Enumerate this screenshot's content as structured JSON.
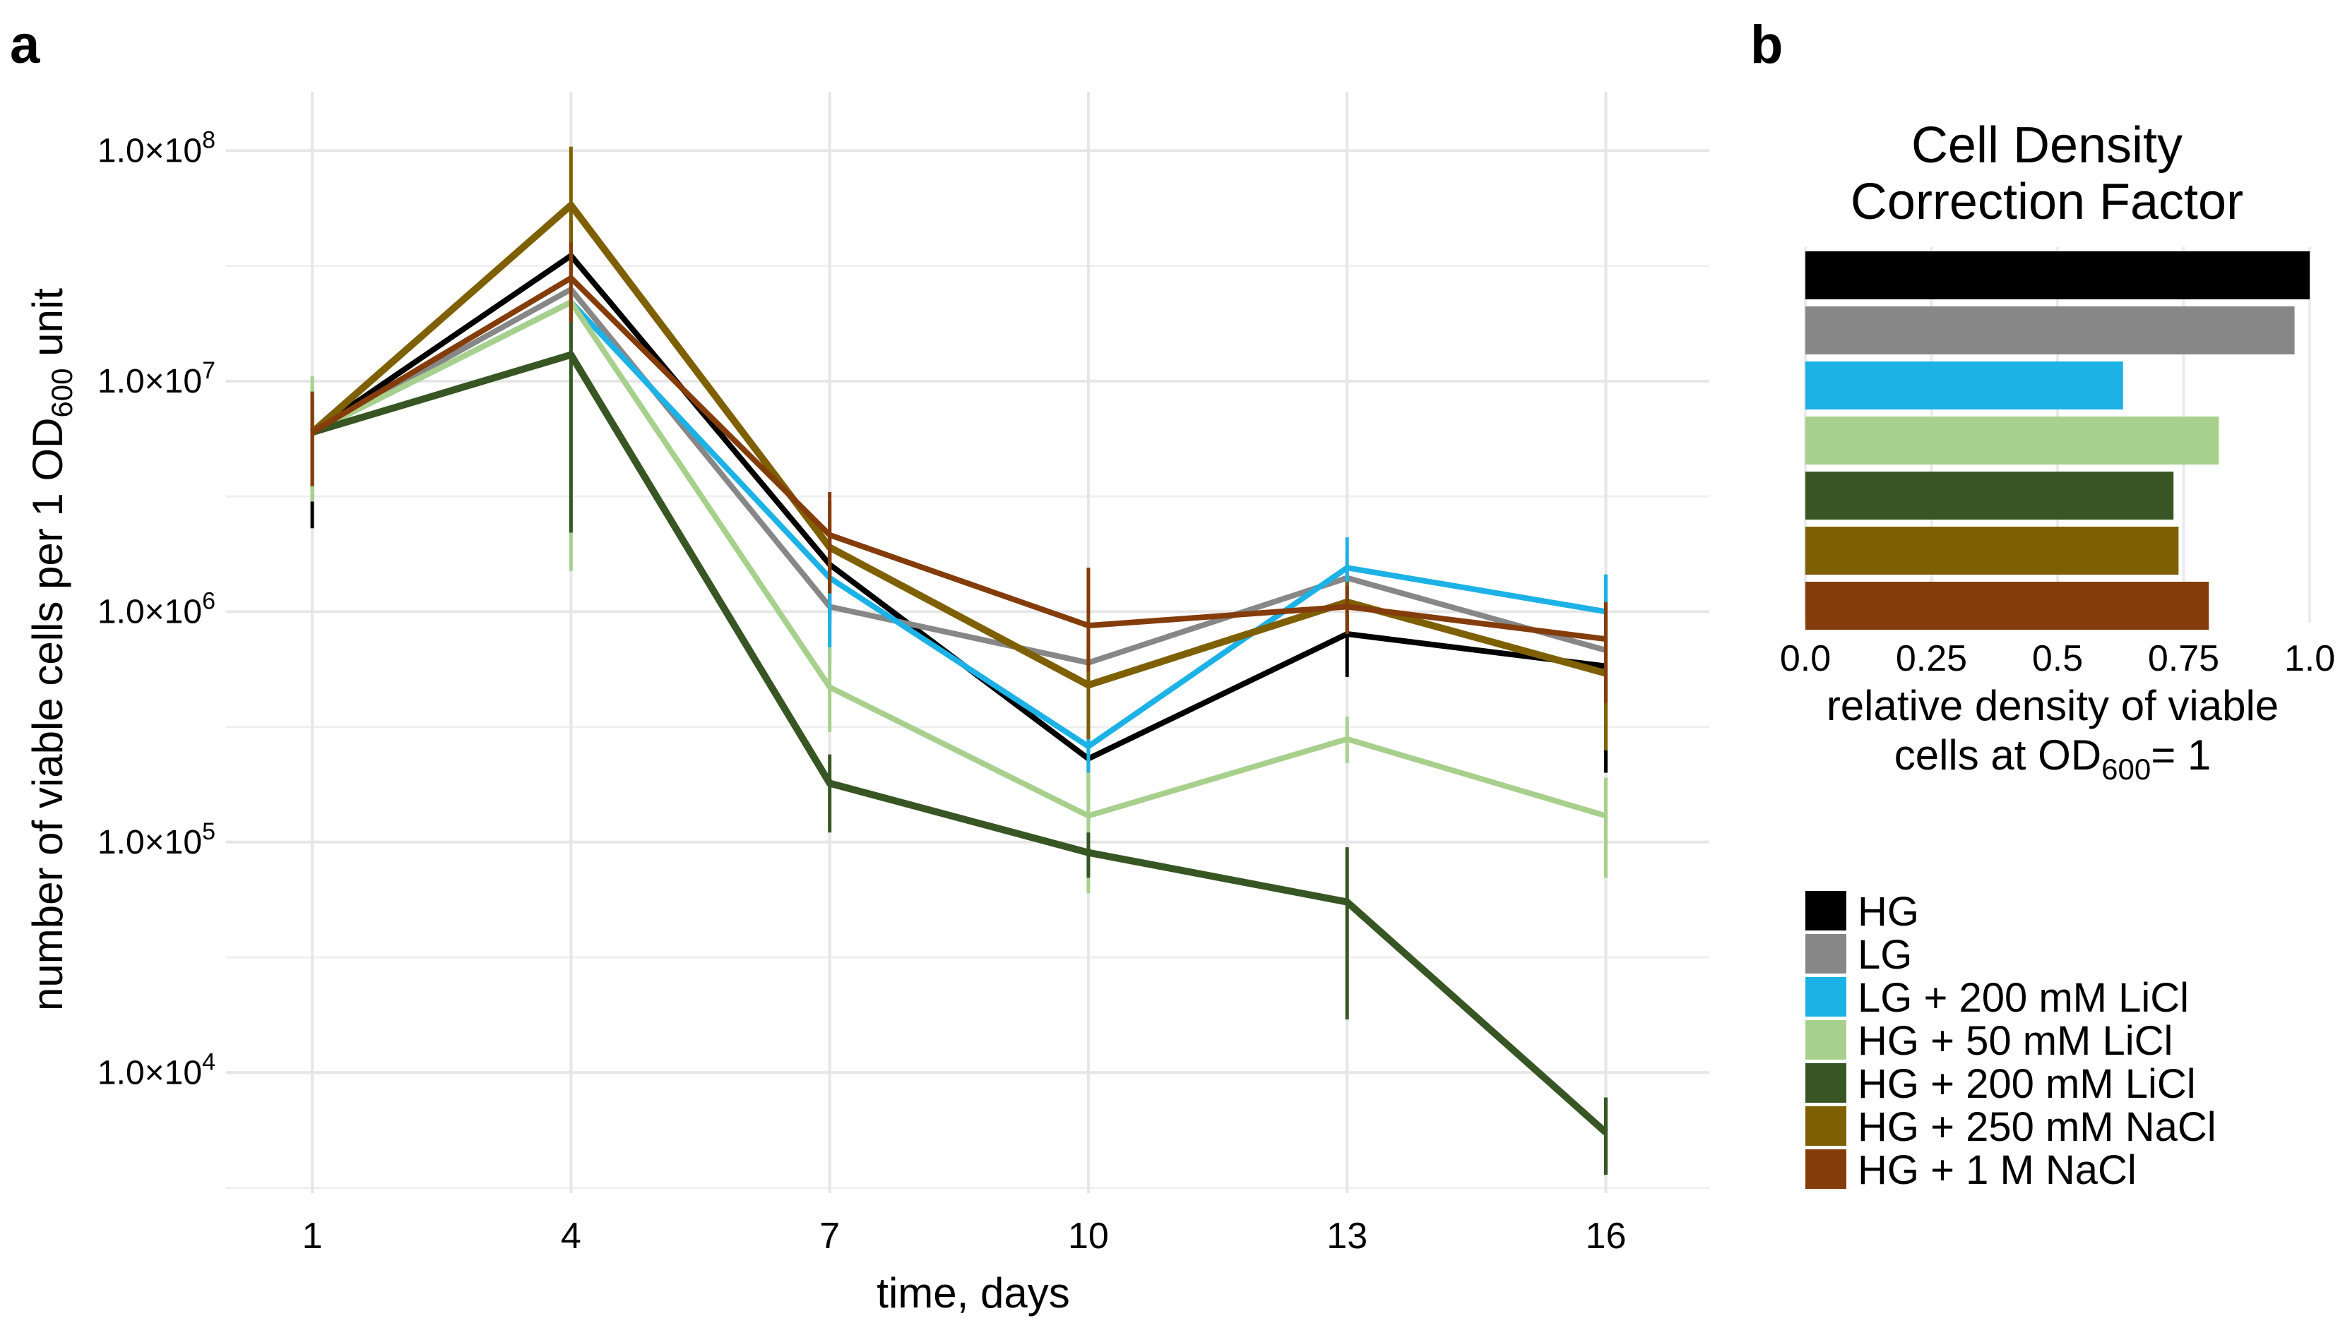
{
  "panels": {
    "a": "a",
    "b": "b"
  },
  "chart_data": [
    {
      "type": "line",
      "panel": "a",
      "title": "",
      "xlabel": "time, days",
      "ylabel_main": "number of viable cells per 1 OD",
      "ylabel_sub": "600",
      "ylabel_tail": " unit",
      "y_scale": "log10",
      "ylim": [
        3000,
        180000000
      ],
      "xlim": [
        0.0,
        17.2
      ],
      "grid": true,
      "x": [
        1,
        4,
        7,
        10,
        13,
        16
      ],
      "x_tick_labels": [
        "1",
        "4",
        "7",
        "10",
        "13",
        "16"
      ],
      "y_ticks": [
        {
          "value": 10000,
          "mant": "1.0×10",
          "exp": "4"
        },
        {
          "value": 100000,
          "mant": "1.0×10",
          "exp": "5"
        },
        {
          "value": 1000000,
          "mant": "1.0×10",
          "exp": "6"
        },
        {
          "value": 10000000,
          "mant": "1.0×10",
          "exp": "7"
        },
        {
          "value": 100000000,
          "mant": "1.0×10",
          "exp": "8"
        }
      ],
      "series": [
        {
          "name": "HG",
          "color": "#000000",
          "values": [
            6000000,
            35000000,
            1600000,
            230000,
            800000,
            580000
          ],
          "err_low": [
            2300000,
            18000000,
            900000,
            160000,
            520000,
            200000
          ],
          "err_high": [
            8000000,
            50000000,
            2200000,
            310000,
            1000000,
            850000
          ]
        },
        {
          "name": "LG",
          "color": "#878787",
          "values": [
            6000000,
            25000000,
            1050000,
            600000,
            1400000,
            680000
          ],
          "err_low": [
            3000000,
            15000000,
            700000,
            420000,
            1000000,
            250000
          ],
          "err_high": [
            9000000,
            35000000,
            1500000,
            800000,
            1700000,
            900000
          ]
        },
        {
          "name": "LG + 200 mM LiCl",
          "color": "#1cb2e6",
          "values": [
            6000000,
            22000000,
            1400000,
            260000,
            1550000,
            1000000
          ],
          "err_low": [
            3500000,
            17000000,
            600000,
            120000,
            1000000,
            600000
          ],
          "err_high": [
            9500000,
            30000000,
            2200000,
            420000,
            2100000,
            1450000
          ]
        },
        {
          "name": "HG + 50 mM LiCl",
          "color": "#a8d08d",
          "values": [
            6000000,
            22000000,
            470000,
            130000,
            280000,
            130000
          ],
          "err_low": [
            3000000,
            1500000,
            300000,
            60000,
            220000,
            70000
          ],
          "err_high": [
            10500000,
            28000000,
            700000,
            200000,
            350000,
            190000
          ]
        },
        {
          "name": "HG + 200 mM LiCl",
          "color": "#375623",
          "values": [
            6000000,
            13000000,
            180000,
            90000,
            55000,
            5500
          ],
          "err_low": [
            4000000,
            2200000,
            110000,
            70000,
            17000,
            3600
          ],
          "err_high": [
            8000000,
            22000000,
            240000,
            110000,
            95000,
            7800
          ]
        },
        {
          "name": "HG + 250 mM NaCl",
          "color": "#7e6000",
          "values": [
            6000000,
            58000000,
            1900000,
            480000,
            1100000,
            540000
          ],
          "err_low": [
            3500000,
            30000000,
            1200000,
            280000,
            800000,
            250000
          ],
          "err_high": [
            9000000,
            104000000,
            3000000,
            700000,
            1350000,
            800000
          ]
        },
        {
          "name": "HG + 1 M NaCl",
          "color": "#843c0b",
          "values": [
            6000000,
            28000000,
            2150000,
            870000,
            1050000,
            760000
          ],
          "err_low": [
            3500000,
            18000000,
            1200000,
            550000,
            800000,
            400000
          ],
          "err_high": [
            9000000,
            40000000,
            3300000,
            1550000,
            1300000,
            1100000
          ]
        }
      ]
    },
    {
      "type": "bar",
      "panel": "b",
      "orientation": "horizontal",
      "title_line1": "Cell Density",
      "title_line2": "Correction Factor",
      "xlabel_line1": "relative density of viable",
      "xlabel_line2_main": "cells at OD",
      "xlabel_line2_sub": "600",
      "xlabel_line2_tail": "= 1",
      "xlim": [
        0,
        1.0
      ],
      "x_ticks": [
        {
          "value": 0,
          "label": "0.0"
        },
        {
          "value": 0.25,
          "label": "0.25"
        },
        {
          "value": 0.5,
          "label": "0.5"
        },
        {
          "value": 0.75,
          "label": "0.75"
        },
        {
          "value": 1.0,
          "label": "1.0"
        }
      ],
      "categories": [
        "HG",
        "LG",
        "LG + 200 mM LiCl",
        "HG + 50 mM LiCl",
        "HG + 200 mM LiCl",
        "HG + 250 mM NaCl",
        "HG + 1 M NaCl"
      ],
      "values": [
        1.0,
        0.97,
        0.63,
        0.82,
        0.73,
        0.74,
        0.8
      ],
      "colors": [
        "#000000",
        "#878787",
        "#1cb2e6",
        "#a8d08d",
        "#375623",
        "#7e6000",
        "#843c0b"
      ]
    }
  ],
  "legend": [
    {
      "label": "HG",
      "color": "#000000"
    },
    {
      "label": "LG",
      "color": "#878787"
    },
    {
      "label": "LG + 200 mM LiCl",
      "color": "#1cb2e6"
    },
    {
      "label": "HG + 50 mM LiCl",
      "color": "#a8d08d"
    },
    {
      "label": "HG + 200 mM LiCl",
      "color": "#375623"
    },
    {
      "label": "HG + 250 mM NaCl",
      "color": "#7e6000"
    },
    {
      "label": "HG + 1 M NaCl",
      "color": "#843c0b"
    }
  ]
}
